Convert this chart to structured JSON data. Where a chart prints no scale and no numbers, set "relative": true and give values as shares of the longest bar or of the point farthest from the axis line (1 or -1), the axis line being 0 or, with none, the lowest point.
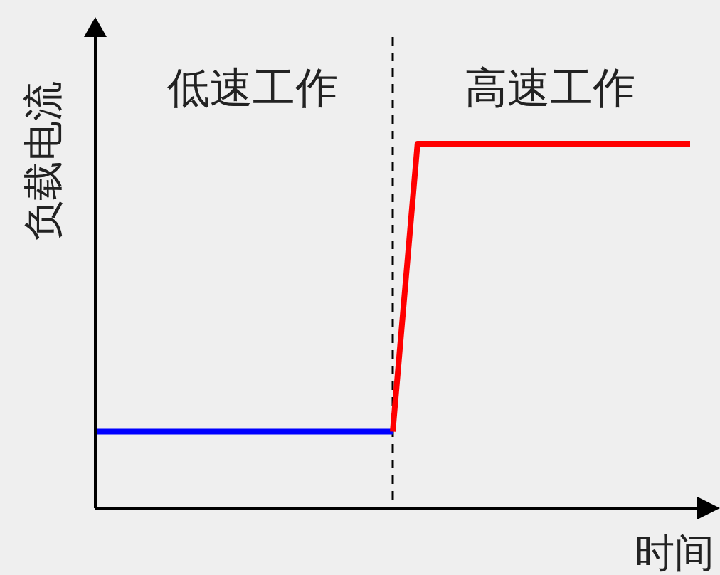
{
  "chart_data": {
    "type": "line",
    "relative": true,
    "xlabel": "时间",
    "ylabel": "负载电流",
    "line_style": "solid",
    "categories": [
      null,
      null,
      null,
      null,
      null,
      null,
      null,
      null,
      null,
      null,
      null,
      null,
      null,
      null,
      null,
      null,
      null,
      null,
      null,
      null,
      null,
      null,
      null,
      null,
      null
    ],
    "series": [
      {
        "color": "#0000ff",
        "values": [
          0.21,
          0.21,
          0.21,
          0.21,
          0.21,
          0.21,
          0.21,
          0.21,
          0.21,
          0.21,
          0.21,
          0.21,
          0.21,
          null,
          null,
          null,
          null,
          null,
          null,
          null,
          null,
          null,
          null,
          null,
          null
        ]
      },
      {
        "color": "#ff0000",
        "values": [
          null,
          null,
          null,
          null,
          null,
          null,
          null,
          null,
          null,
          null,
          null,
          null,
          0.21,
          1,
          1,
          1,
          1,
          1,
          1,
          1,
          1,
          1,
          1,
          1,
          1
        ]
      }
    ],
    "ref_lines": [
      {
        "axis": "x",
        "color": "#000000",
        "line_style": "dashed"
      }
    ],
    "annotations": [
      "低速工作",
      "高速工作"
    ]
  }
}
